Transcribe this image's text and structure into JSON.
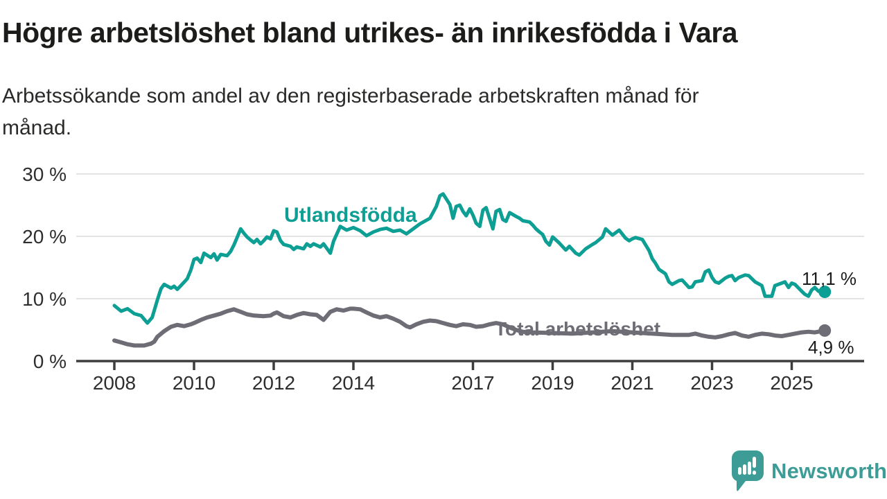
{
  "header": {
    "title": "Högre arbetslöshet bland utrikes- än inrikesfödda i Vara",
    "subtitle": "Arbetssökande som andel av den registerbaserade arbetskraften månad för månad."
  },
  "annotations": {
    "foreign_label": "Utlandsfödda",
    "total_label": "Total arbetslöshet",
    "foreign_end_value": "11,1 %",
    "total_end_value": "4,9 %"
  },
  "footer": {
    "brand": "Newsworthy"
  },
  "colors": {
    "teal_line": "#0d9e94",
    "gray_line": "#6e6d76",
    "grid": "#e3e3e3",
    "axis": "#3d3d3d",
    "title_text": "#1c1c1a",
    "logo_teal": "#3d9d96"
  },
  "chart_data": {
    "type": "line",
    "title": "Högre arbetslöshet bland utrikes- än inrikesfödda i Vara",
    "subtitle": "Arbetssökande som andel av den registerbaserade arbetskraften månad för månad.",
    "xlabel": "",
    "ylabel": "",
    "x_axis": {
      "year0": 2008,
      "ticks": [
        2008,
        2010,
        2012,
        2014,
        2017,
        2019,
        2021,
        2023,
        2025
      ],
      "range": [
        2007.0,
        2026.8
      ]
    },
    "y_axis": {
      "unit": "%",
      "ticks": [
        0,
        10,
        20,
        30
      ],
      "range": [
        0,
        30
      ],
      "grid": true
    },
    "legend_position": "inline-labels",
    "series": [
      {
        "key": "utlandsfodda",
        "name": "Utlandsfödda",
        "color": "#0d9e94",
        "width": 5,
        "end_label": "11,1 %",
        "end_value": 11.1,
        "points": [
          [
            2008.0,
            8.9
          ],
          [
            2008.17,
            8.0
          ],
          [
            2008.33,
            8.4
          ],
          [
            2008.5,
            7.6
          ],
          [
            2008.67,
            7.3
          ],
          [
            2008.83,
            6.1
          ],
          [
            2008.95,
            7.0
          ],
          [
            2009.08,
            9.8
          ],
          [
            2009.17,
            11.6
          ],
          [
            2009.25,
            12.3
          ],
          [
            2009.42,
            11.7
          ],
          [
            2009.5,
            12.0
          ],
          [
            2009.58,
            11.5
          ],
          [
            2009.67,
            12.1
          ],
          [
            2009.83,
            13.2
          ],
          [
            2009.92,
            14.6
          ],
          [
            2010.0,
            16.3
          ],
          [
            2010.08,
            16.5
          ],
          [
            2010.17,
            15.8
          ],
          [
            2010.25,
            17.3
          ],
          [
            2010.42,
            16.6
          ],
          [
            2010.5,
            17.2
          ],
          [
            2010.58,
            16.2
          ],
          [
            2010.67,
            17.1
          ],
          [
            2010.83,
            16.9
          ],
          [
            2010.92,
            17.6
          ],
          [
            2011.0,
            18.6
          ],
          [
            2011.08,
            19.8
          ],
          [
            2011.17,
            21.2
          ],
          [
            2011.25,
            20.5
          ],
          [
            2011.33,
            19.9
          ],
          [
            2011.42,
            19.4
          ],
          [
            2011.5,
            19.0
          ],
          [
            2011.58,
            19.5
          ],
          [
            2011.67,
            18.8
          ],
          [
            2011.75,
            19.3
          ],
          [
            2011.83,
            19.9
          ],
          [
            2011.92,
            19.6
          ],
          [
            2012.0,
            20.9
          ],
          [
            2012.08,
            20.7
          ],
          [
            2012.17,
            19.3
          ],
          [
            2012.25,
            18.7
          ],
          [
            2012.42,
            18.4
          ],
          [
            2012.5,
            17.9
          ],
          [
            2012.58,
            18.3
          ],
          [
            2012.75,
            18.0
          ],
          [
            2012.83,
            18.8
          ],
          [
            2012.92,
            18.4
          ],
          [
            2013.0,
            18.8
          ],
          [
            2013.17,
            18.3
          ],
          [
            2013.25,
            18.8
          ],
          [
            2013.42,
            17.3
          ],
          [
            2013.5,
            19.2
          ],
          [
            2013.67,
            21.6
          ],
          [
            2013.83,
            21.0
          ],
          [
            2014.0,
            21.4
          ],
          [
            2014.17,
            20.9
          ],
          [
            2014.33,
            20.1
          ],
          [
            2014.5,
            20.7
          ],
          [
            2014.67,
            21.1
          ],
          [
            2014.83,
            21.3
          ],
          [
            2015.0,
            20.8
          ],
          [
            2015.17,
            21.0
          ],
          [
            2015.33,
            20.4
          ],
          [
            2015.5,
            21.2
          ],
          [
            2015.67,
            22.0
          ],
          [
            2015.92,
            22.9
          ],
          [
            2016.08,
            24.8
          ],
          [
            2016.17,
            26.5
          ],
          [
            2016.25,
            26.8
          ],
          [
            2016.42,
            25.1
          ],
          [
            2016.5,
            22.9
          ],
          [
            2016.58,
            24.8
          ],
          [
            2016.67,
            25.0
          ],
          [
            2016.75,
            24.0
          ],
          [
            2016.83,
            23.3
          ],
          [
            2016.92,
            24.4
          ],
          [
            2017.0,
            23.4
          ],
          [
            2017.08,
            22.1
          ],
          [
            2017.17,
            21.6
          ],
          [
            2017.25,
            24.2
          ],
          [
            2017.33,
            24.6
          ],
          [
            2017.5,
            21.2
          ],
          [
            2017.58,
            24.0
          ],
          [
            2017.67,
            24.3
          ],
          [
            2017.75,
            22.7
          ],
          [
            2017.83,
            22.4
          ],
          [
            2017.92,
            23.8
          ],
          [
            2018.08,
            23.2
          ],
          [
            2018.17,
            22.9
          ],
          [
            2018.25,
            22.5
          ],
          [
            2018.42,
            22.3
          ],
          [
            2018.5,
            21.8
          ],
          [
            2018.58,
            21.2
          ],
          [
            2018.67,
            20.7
          ],
          [
            2018.75,
            20.3
          ],
          [
            2018.83,
            19.2
          ],
          [
            2018.92,
            18.6
          ],
          [
            2019.0,
            19.9
          ],
          [
            2019.17,
            18.9
          ],
          [
            2019.33,
            17.8
          ],
          [
            2019.42,
            18.4
          ],
          [
            2019.58,
            17.3
          ],
          [
            2019.67,
            17.0
          ],
          [
            2019.83,
            18.0
          ],
          [
            2020.0,
            18.7
          ],
          [
            2020.08,
            19.0
          ],
          [
            2020.25,
            19.9
          ],
          [
            2020.33,
            21.2
          ],
          [
            2020.5,
            20.2
          ],
          [
            2020.67,
            21.0
          ],
          [
            2020.83,
            19.7
          ],
          [
            2020.92,
            19.3
          ],
          [
            2021.0,
            19.6
          ],
          [
            2021.08,
            19.8
          ],
          [
            2021.25,
            19.5
          ],
          [
            2021.42,
            17.7
          ],
          [
            2021.5,
            16.4
          ],
          [
            2021.58,
            15.7
          ],
          [
            2021.67,
            14.7
          ],
          [
            2021.83,
            14.0
          ],
          [
            2021.92,
            12.7
          ],
          [
            2022.0,
            12.3
          ],
          [
            2022.17,
            12.9
          ],
          [
            2022.25,
            13.0
          ],
          [
            2022.42,
            11.8
          ],
          [
            2022.5,
            11.9
          ],
          [
            2022.58,
            12.7
          ],
          [
            2022.75,
            12.9
          ],
          [
            2022.83,
            14.3
          ],
          [
            2022.92,
            14.6
          ],
          [
            2023.0,
            13.4
          ],
          [
            2023.08,
            12.7
          ],
          [
            2023.17,
            12.5
          ],
          [
            2023.33,
            13.3
          ],
          [
            2023.42,
            13.6
          ],
          [
            2023.5,
            13.7
          ],
          [
            2023.58,
            12.9
          ],
          [
            2023.67,
            13.4
          ],
          [
            2023.83,
            13.8
          ],
          [
            2023.92,
            13.7
          ],
          [
            2024.08,
            12.7
          ],
          [
            2024.25,
            12.1
          ],
          [
            2024.33,
            10.4
          ],
          [
            2024.5,
            10.4
          ],
          [
            2024.58,
            12.1
          ],
          [
            2024.75,
            12.5
          ],
          [
            2024.83,
            12.7
          ],
          [
            2024.92,
            11.8
          ],
          [
            2025.0,
            12.5
          ],
          [
            2025.08,
            12.3
          ],
          [
            2025.25,
            11.2
          ],
          [
            2025.33,
            10.7
          ],
          [
            2025.42,
            10.4
          ],
          [
            2025.5,
            11.4
          ],
          [
            2025.58,
            11.8
          ],
          [
            2025.67,
            11.2
          ],
          [
            2025.83,
            11.1
          ]
        ]
      },
      {
        "key": "total",
        "name": "Total arbetslöshet",
        "color": "#6e6d76",
        "width": 6,
        "end_label": "4,9 %",
        "end_value": 4.9,
        "points": [
          [
            2008.0,
            3.3
          ],
          [
            2008.17,
            3.0
          ],
          [
            2008.33,
            2.7
          ],
          [
            2008.5,
            2.5
          ],
          [
            2008.75,
            2.5
          ],
          [
            2008.92,
            2.8
          ],
          [
            2009.0,
            3.1
          ],
          [
            2009.08,
            3.9
          ],
          [
            2009.25,
            4.8
          ],
          [
            2009.42,
            5.5
          ],
          [
            2009.58,
            5.8
          ],
          [
            2009.75,
            5.6
          ],
          [
            2009.92,
            5.9
          ],
          [
            2010.0,
            6.1
          ],
          [
            2010.17,
            6.6
          ],
          [
            2010.33,
            7.0
          ],
          [
            2010.5,
            7.3
          ],
          [
            2010.67,
            7.6
          ],
          [
            2010.83,
            8.0
          ],
          [
            2011.0,
            8.3
          ],
          [
            2011.17,
            7.9
          ],
          [
            2011.33,
            7.5
          ],
          [
            2011.5,
            7.3
          ],
          [
            2011.75,
            7.2
          ],
          [
            2011.92,
            7.3
          ],
          [
            2012.0,
            7.6
          ],
          [
            2012.08,
            7.8
          ],
          [
            2012.25,
            7.2
          ],
          [
            2012.42,
            7.0
          ],
          [
            2012.58,
            7.4
          ],
          [
            2012.75,
            7.7
          ],
          [
            2012.92,
            7.5
          ],
          [
            2013.08,
            7.4
          ],
          [
            2013.25,
            6.6
          ],
          [
            2013.42,
            7.9
          ],
          [
            2013.58,
            8.3
          ],
          [
            2013.75,
            8.1
          ],
          [
            2013.92,
            8.4
          ],
          [
            2014.0,
            8.4
          ],
          [
            2014.17,
            8.3
          ],
          [
            2014.33,
            7.8
          ],
          [
            2014.5,
            7.3
          ],
          [
            2014.67,
            7.0
          ],
          [
            2014.83,
            7.2
          ],
          [
            2015.0,
            6.8
          ],
          [
            2015.17,
            6.3
          ],
          [
            2015.33,
            5.6
          ],
          [
            2015.42,
            5.4
          ],
          [
            2015.58,
            5.9
          ],
          [
            2015.75,
            6.3
          ],
          [
            2015.92,
            6.5
          ],
          [
            2016.08,
            6.4
          ],
          [
            2016.25,
            6.1
          ],
          [
            2016.42,
            5.8
          ],
          [
            2016.58,
            5.6
          ],
          [
            2016.75,
            5.9
          ],
          [
            2016.92,
            5.8
          ],
          [
            2017.08,
            5.5
          ],
          [
            2017.25,
            5.6
          ],
          [
            2017.42,
            5.9
          ],
          [
            2017.58,
            6.1
          ],
          [
            2017.75,
            5.9
          ],
          [
            2017.92,
            5.4
          ],
          [
            2018.08,
            5.0
          ],
          [
            2018.25,
            4.7
          ],
          [
            2018.5,
            4.6
          ],
          [
            2019.0,
            4.5
          ],
          [
            2019.5,
            4.4
          ],
          [
            2020.0,
            4.6
          ],
          [
            2020.5,
            4.8
          ],
          [
            2021.0,
            4.6
          ],
          [
            2021.5,
            4.4
          ],
          [
            2022.0,
            4.2
          ],
          [
            2022.42,
            4.2
          ],
          [
            2022.58,
            4.4
          ],
          [
            2022.75,
            4.1
          ],
          [
            2022.92,
            3.9
          ],
          [
            2023.08,
            3.8
          ],
          [
            2023.25,
            4.0
          ],
          [
            2023.42,
            4.3
          ],
          [
            2023.58,
            4.5
          ],
          [
            2023.75,
            4.1
          ],
          [
            2023.92,
            3.9
          ],
          [
            2024.08,
            4.2
          ],
          [
            2024.25,
            4.4
          ],
          [
            2024.42,
            4.3
          ],
          [
            2024.58,
            4.1
          ],
          [
            2024.75,
            4.0
          ],
          [
            2024.92,
            4.2
          ],
          [
            2025.08,
            4.4
          ],
          [
            2025.25,
            4.6
          ],
          [
            2025.42,
            4.7
          ],
          [
            2025.58,
            4.6
          ],
          [
            2025.83,
            4.9
          ]
        ]
      }
    ]
  }
}
